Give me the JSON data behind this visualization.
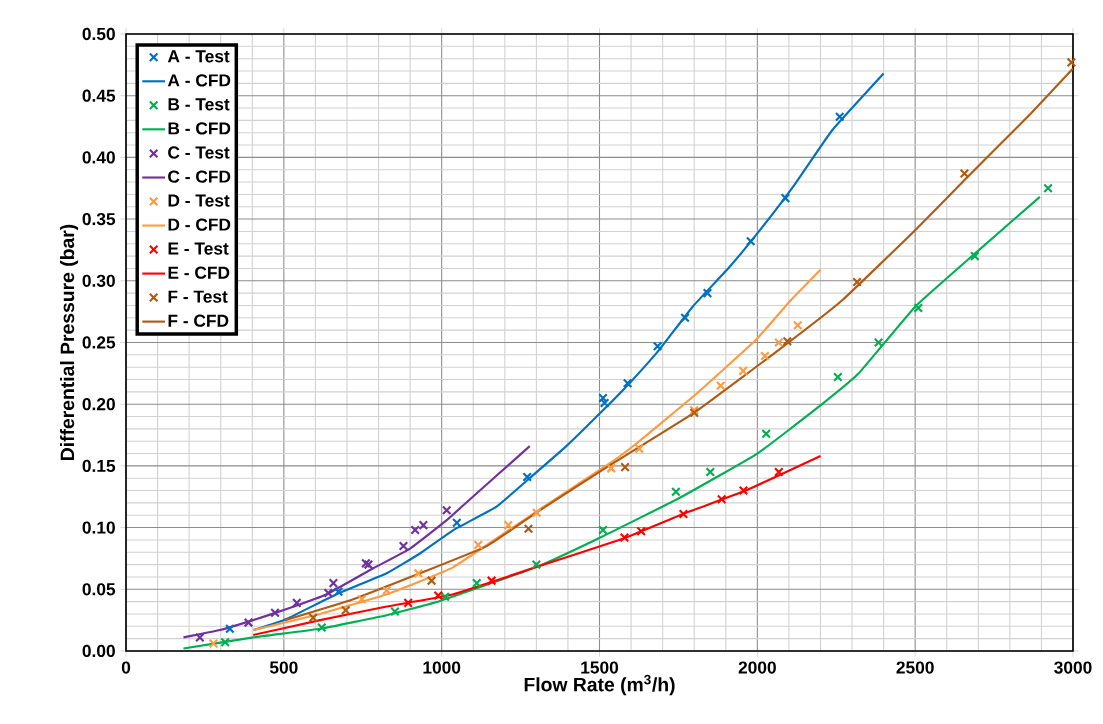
{
  "chart_data": {
    "type": "scatter",
    "xlabel": "Flow Rate (m$^{3}$/h)",
    "ylabel": "Differential Pressure (bar)",
    "xlim": [
      0,
      3000
    ],
    "ylim": [
      0,
      0.5
    ],
    "xticks": [
      0,
      500,
      1000,
      1500,
      2000,
      2500,
      3000
    ],
    "yticks": [
      {
        "value": 0,
        "label": "0.00"
      },
      {
        "value": 0.05,
        "label": "0.05"
      },
      {
        "value": 0.1,
        "label": "0.10"
      },
      {
        "value": 0.15,
        "label": "0.15"
      },
      {
        "value": 0.2,
        "label": "0.20"
      },
      {
        "value": 0.25,
        "label": "0.25"
      },
      {
        "value": 0.3,
        "label": "0.30"
      },
      {
        "value": 0.35,
        "label": "0.35"
      },
      {
        "value": 0.4,
        "label": "0.40"
      },
      {
        "value": 0.45,
        "label": "0.45"
      },
      {
        "value": 0.5,
        "label": "0.50"
      }
    ],
    "grid": true,
    "legend": "top left",
    "series": [
      {
        "name": "A - Test",
        "marker": "cross",
        "color": "#0070c0",
        "x": [
          329,
          673,
          1048,
          1271,
          1511,
          1516,
          1589,
          1684,
          1771,
          1842,
          1979,
          2089,
          2261
        ],
        "values": [
          0.018,
          0.048,
          0.104,
          0.141,
          0.205,
          0.201,
          0.217,
          0.247,
          0.27,
          0.29,
          0.332,
          0.367,
          0.433
        ]
      },
      {
        "name": "A - CFD",
        "type": "line",
        "color": "#0070c0",
        "x": [
          404,
          509,
          667,
          826,
          931,
          1037,
          1174,
          1274,
          1395,
          1511,
          1595,
          1689,
          1795,
          1911,
          2005,
          2121,
          2237,
          2400
        ],
        "values": [
          0.017,
          0.026,
          0.046,
          0.063,
          0.079,
          0.098,
          0.117,
          0.139,
          0.166,
          0.195,
          0.217,
          0.244,
          0.279,
          0.311,
          0.34,
          0.379,
          0.422,
          0.468
        ]
      },
      {
        "name": "B - Test",
        "marker": "cross",
        "color": "#00b050",
        "x": [
          314,
          620,
          852,
          1011,
          1111,
          1300,
          1511,
          1742,
          1851,
          2028,
          2255,
          2384,
          2510,
          2689,
          2921
        ],
        "values": [
          0.007,
          0.019,
          0.032,
          0.044,
          0.055,
          0.07,
          0.098,
          0.129,
          0.145,
          0.176,
          0.222,
          0.25,
          0.278,
          0.32,
          0.375
        ]
      },
      {
        "name": "B - CFD",
        "type": "line",
        "color": "#00b050",
        "x": [
          182,
          403,
          615,
          826,
          1000,
          1300,
          1511,
          1753,
          2000,
          2200,
          2321,
          2500,
          2689,
          2895
        ],
        "values": [
          0.002,
          0.011,
          0.018,
          0.029,
          0.041,
          0.068,
          0.093,
          0.124,
          0.16,
          0.199,
          0.225,
          0.279,
          0.322,
          0.368
        ]
      },
      {
        "name": "C - Test",
        "marker": "cross",
        "color": "#7030a0",
        "x": [
          234,
          388,
          472,
          541,
          641,
          657,
          760,
          768,
          879,
          916,
          942,
          1016
        ],
        "values": [
          0.011,
          0.023,
          0.031,
          0.039,
          0.047,
          0.055,
          0.071,
          0.07,
          0.085,
          0.098,
          0.102,
          0.114
        ]
      },
      {
        "name": "C - CFD",
        "type": "line",
        "color": "#7030a0",
        "x": [
          182,
          298,
          403,
          509,
          636,
          783,
          900,
          1016,
          1090,
          1279
        ],
        "values": [
          0.011,
          0.017,
          0.025,
          0.034,
          0.046,
          0.067,
          0.083,
          0.106,
          0.123,
          0.166
        ]
      },
      {
        "name": "D - Test",
        "marker": "cross",
        "color": "#ff9a40",
        "x": [
          277,
          747,
          826,
          926,
          1116,
          1211,
          1301,
          1537,
          1626,
          1800,
          1884,
          1955,
          2024,
          2068,
          2128
        ],
        "values": [
          0.006,
          0.042,
          0.049,
          0.063,
          0.086,
          0.102,
          0.112,
          0.148,
          0.164,
          0.195,
          0.215,
          0.227,
          0.239,
          0.25,
          0.264
        ]
      },
      {
        "name": "D - CFD",
        "type": "line",
        "color": "#ff9a40",
        "x": [
          403,
          615,
          826,
          1037,
          1300,
          1532,
          1626,
          1805,
          1995,
          2105,
          2200
        ],
        "values": [
          0.017,
          0.03,
          0.046,
          0.068,
          0.113,
          0.152,
          0.17,
          0.208,
          0.252,
          0.284,
          0.309
        ]
      },
      {
        "name": "E - Test",
        "marker": "cross",
        "color": "#ff0000",
        "x": [
          894,
          989,
          1158,
          1579,
          1632,
          1766,
          1887,
          1956,
          2068
        ],
        "values": [
          0.039,
          0.045,
          0.057,
          0.092,
          0.097,
          0.111,
          0.123,
          0.13,
          0.145
        ]
      },
      {
        "name": "E - CFD",
        "type": "line",
        "color": "#ff0000",
        "x": [
          403,
          615,
          826,
          1037,
          1300,
          1574,
          1774,
          1963,
          2200
        ],
        "values": [
          0.013,
          0.025,
          0.036,
          0.046,
          0.068,
          0.091,
          0.112,
          0.13,
          0.158
        ]
      },
      {
        "name": "F - Test",
        "marker": "cross",
        "color": "#b35a12",
        "x": [
          593,
          696,
          968,
          1275,
          1581,
          1800,
          2095,
          2316,
          2656,
          2995
        ],
        "values": [
          0.027,
          0.033,
          0.057,
          0.099,
          0.149,
          0.193,
          0.251,
          0.299,
          0.387,
          0.477
        ]
      },
      {
        "name": "F - CFD",
        "type": "line",
        "color": "#b35a12",
        "x": [
          504,
          720,
          931,
          1143,
          1311,
          1542,
          1805,
          2068,
          2268,
          2500,
          2658,
          2868,
          3000
        ],
        "values": [
          0.025,
          0.042,
          0.063,
          0.085,
          0.114,
          0.152,
          0.194,
          0.244,
          0.284,
          0.341,
          0.382,
          0.436,
          0.472
        ]
      }
    ]
  }
}
